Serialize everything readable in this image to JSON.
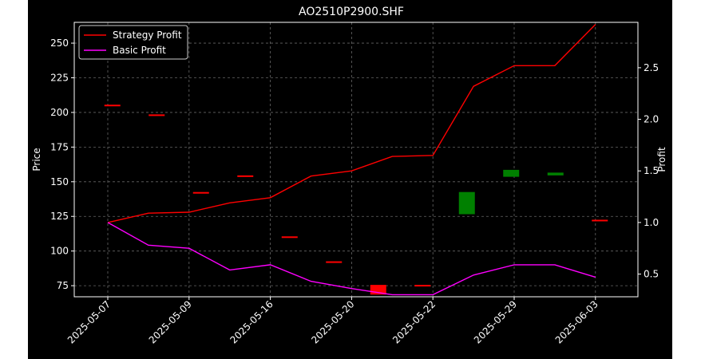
{
  "chart_data": {
    "type": "line",
    "title": "AO2510P2900.SHF",
    "xlabel": "",
    "ylabel_left": "Price",
    "ylabel_right": "Profit",
    "x_tick_labels": [
      "2025-05-07",
      "2025-05-09",
      "2025-05-16",
      "2025-05-20",
      "2025-05-22",
      "2025-05-29",
      "2025-06-03"
    ],
    "ylim_left": [
      67,
      265
    ],
    "yticks_left": [
      75,
      100,
      125,
      150,
      175,
      200,
      225,
      250
    ],
    "ylim_right": [
      0.28,
      2.94
    ],
    "yticks_right": [
      0.5,
      1.0,
      1.5,
      2.0,
      2.5
    ],
    "grid": true,
    "legend_position": "top-left",
    "colors": {
      "strategy": "#ff0000",
      "basic": "#ff00ff",
      "up_candle": "#008000",
      "down_candle": "#ff0000"
    },
    "series": [
      {
        "name": "Strategy Profit",
        "axis": "right",
        "values": [
          1.0,
          1.09,
          1.1,
          1.19,
          1.24,
          1.45,
          1.5,
          1.64,
          1.65,
          2.32,
          2.52,
          2.52,
          2.92
        ]
      },
      {
        "name": "Basic Profit",
        "axis": "right",
        "values": [
          1.0,
          0.78,
          0.75,
          0.54,
          0.59,
          0.43,
          0.36,
          0.3,
          0.3,
          0.49,
          0.59,
          0.59,
          0.47
        ]
      }
    ],
    "candles": [
      {
        "open": 205,
        "close": 205
      },
      {
        "open": 198,
        "close": 198
      },
      {
        "open": 142,
        "close": 142
      },
      {
        "open": 154,
        "close": 154
      },
      {
        "open": 110,
        "close": 110
      },
      {
        "open": 92,
        "close": 92
      },
      {
        "open": 75,
        "close": 68
      },
      {
        "open": 75,
        "close": 75
      },
      {
        "open": 126,
        "close": 142
      },
      {
        "open": 153,
        "close": 158
      },
      {
        "open": 154,
        "close": 156
      },
      {
        "open": 122,
        "close": 122
      }
    ]
  }
}
